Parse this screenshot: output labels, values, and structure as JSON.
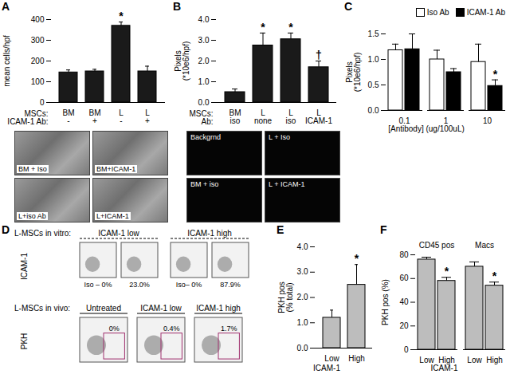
{
  "chart_data": [
    {
      "panel": "A",
      "type": "bar",
      "ylabel": "mean cells/hpf",
      "category_rows": [
        "MSCs:",
        "ICAM-1 Ab:"
      ],
      "categories": [
        [
          "BM",
          "-"
        ],
        [
          "BM",
          "+"
        ],
        [
          "L",
          "-"
        ],
        [
          "L",
          "+"
        ]
      ],
      "values": [
        145,
        150,
        370,
        150
      ],
      "errors": [
        12,
        10,
        18,
        25
      ],
      "color": "#1a1a1a",
      "ylim": [
        0,
        400
      ],
      "yticks": [
        0,
        100,
        200,
        300,
        400
      ],
      "annotations": [
        {
          "at": 2,
          "text": "*"
        }
      ]
    },
    {
      "panel": "B",
      "type": "bar",
      "ylabel": "Pixels\n(*10e6/hpf)",
      "category_rows": [
        "MSCs:",
        "Ab:"
      ],
      "categories": [
        [
          "BM",
          "iso"
        ],
        [
          "L",
          "none"
        ],
        [
          "L",
          "iso"
        ],
        [
          "L",
          "ICAM-1"
        ]
      ],
      "values": [
        0.5,
        2.75,
        3.05,
        1.7
      ],
      "errors": [
        0.15,
        0.6,
        0.3,
        0.3
      ],
      "color": "#1a1a1a",
      "ylim": [
        0,
        4
      ],
      "yticks": [
        0,
        1,
        2,
        3,
        4
      ],
      "annotations": [
        {
          "at": 1,
          "text": "*"
        },
        {
          "at": 2,
          "text": "*"
        },
        {
          "at": 3,
          "text": "†"
        }
      ]
    },
    {
      "panel": "C",
      "type": "bar",
      "ylabel": "Pixels\n(*10e6/hpf)",
      "xlabel": "[Antibody] (ug/100uL)",
      "categories": [
        "0.1",
        "1",
        "10"
      ],
      "series": [
        {
          "name": "Iso Ab",
          "color": "#ffffff",
          "values": [
            1.18,
            1.0,
            0.95
          ],
          "errors": [
            0.12,
            0.18,
            0.35
          ]
        },
        {
          "name": "ICAM-1 Ab",
          "color": "#000000",
          "values": [
            1.2,
            0.75,
            0.48
          ],
          "errors": [
            0.3,
            0.07,
            0.12
          ],
          "annotations": [
            {
              "at": 2,
              "text": "*"
            }
          ]
        }
      ],
      "legend": "top-right",
      "ylim": [
        0,
        1.5
      ],
      "yticks": [
        0,
        0.5,
        1,
        1.5
      ]
    },
    {
      "panel": "E",
      "type": "bar",
      "ylabel": "PKH pos\n(% total)",
      "xlabel": "ICAM-1",
      "categories": [
        "Low",
        "High"
      ],
      "values": [
        1.2,
        2.5
      ],
      "errors": [
        0.3,
        0.8
      ],
      "color": "#bdbdbd",
      "ylim": [
        0,
        4
      ],
      "yticks": [
        0,
        1,
        2,
        3,
        4
      ],
      "annotations": [
        {
          "at": 1,
          "text": "*"
        }
      ]
    },
    {
      "panel": "F",
      "type": "bar",
      "ylabel": "PKH pos (%)",
      "xlabel": "ICAM-1",
      "groups": [
        "CD45 pos",
        "Macs"
      ],
      "categories": [
        "Low",
        "High"
      ],
      "values": [
        [
          76,
          58
        ],
        [
          70,
          54
        ]
      ],
      "errors": [
        [
          2,
          3
        ],
        [
          4,
          3
        ]
      ],
      "color": "#bdbdbd",
      "ylim": [
        0,
        80
      ],
      "yticks": [
        0,
        20,
        40,
        60,
        80
      ],
      "annotations": [
        {
          "group": 0,
          "at": 1,
          "text": "*"
        },
        {
          "group": 1,
          "at": 1,
          "text": "*"
        }
      ]
    }
  ],
  "images": [
    {
      "panel": "A",
      "labels": [
        "BM + Iso",
        "BM+ICAM-1",
        "L+iso Ab",
        "L+ICAM-1"
      ]
    },
    {
      "panel": "B",
      "labels": [
        "Backgrnd",
        "L + Iso",
        "BM + iso",
        "L + ICAM-1"
      ]
    }
  ],
  "flow": {
    "panel": "D",
    "rows": [
      {
        "label": "L-MSCs in vitro:",
        "axis_label": "ICAM-1",
        "groups": [
          {
            "title": "ICAM-1 low",
            "plots": [
              "Iso – 0%",
              "23.0%"
            ]
          },
          {
            "title": "ICAM-1 high",
            "plots": [
              "Iso– 0%",
              "87.9%"
            ]
          }
        ]
      },
      {
        "label": "L-MSCs in vivo:",
        "axis_label": "PKH",
        "groups": [
          {
            "title": "Untreated",
            "plots": [
              "0%"
            ]
          },
          {
            "title": "ICAM-1 low",
            "plots": [
              "0.4%"
            ]
          },
          {
            "title": "ICAM-1 high",
            "plots": [
              "1.7%"
            ]
          }
        ]
      }
    ]
  }
}
